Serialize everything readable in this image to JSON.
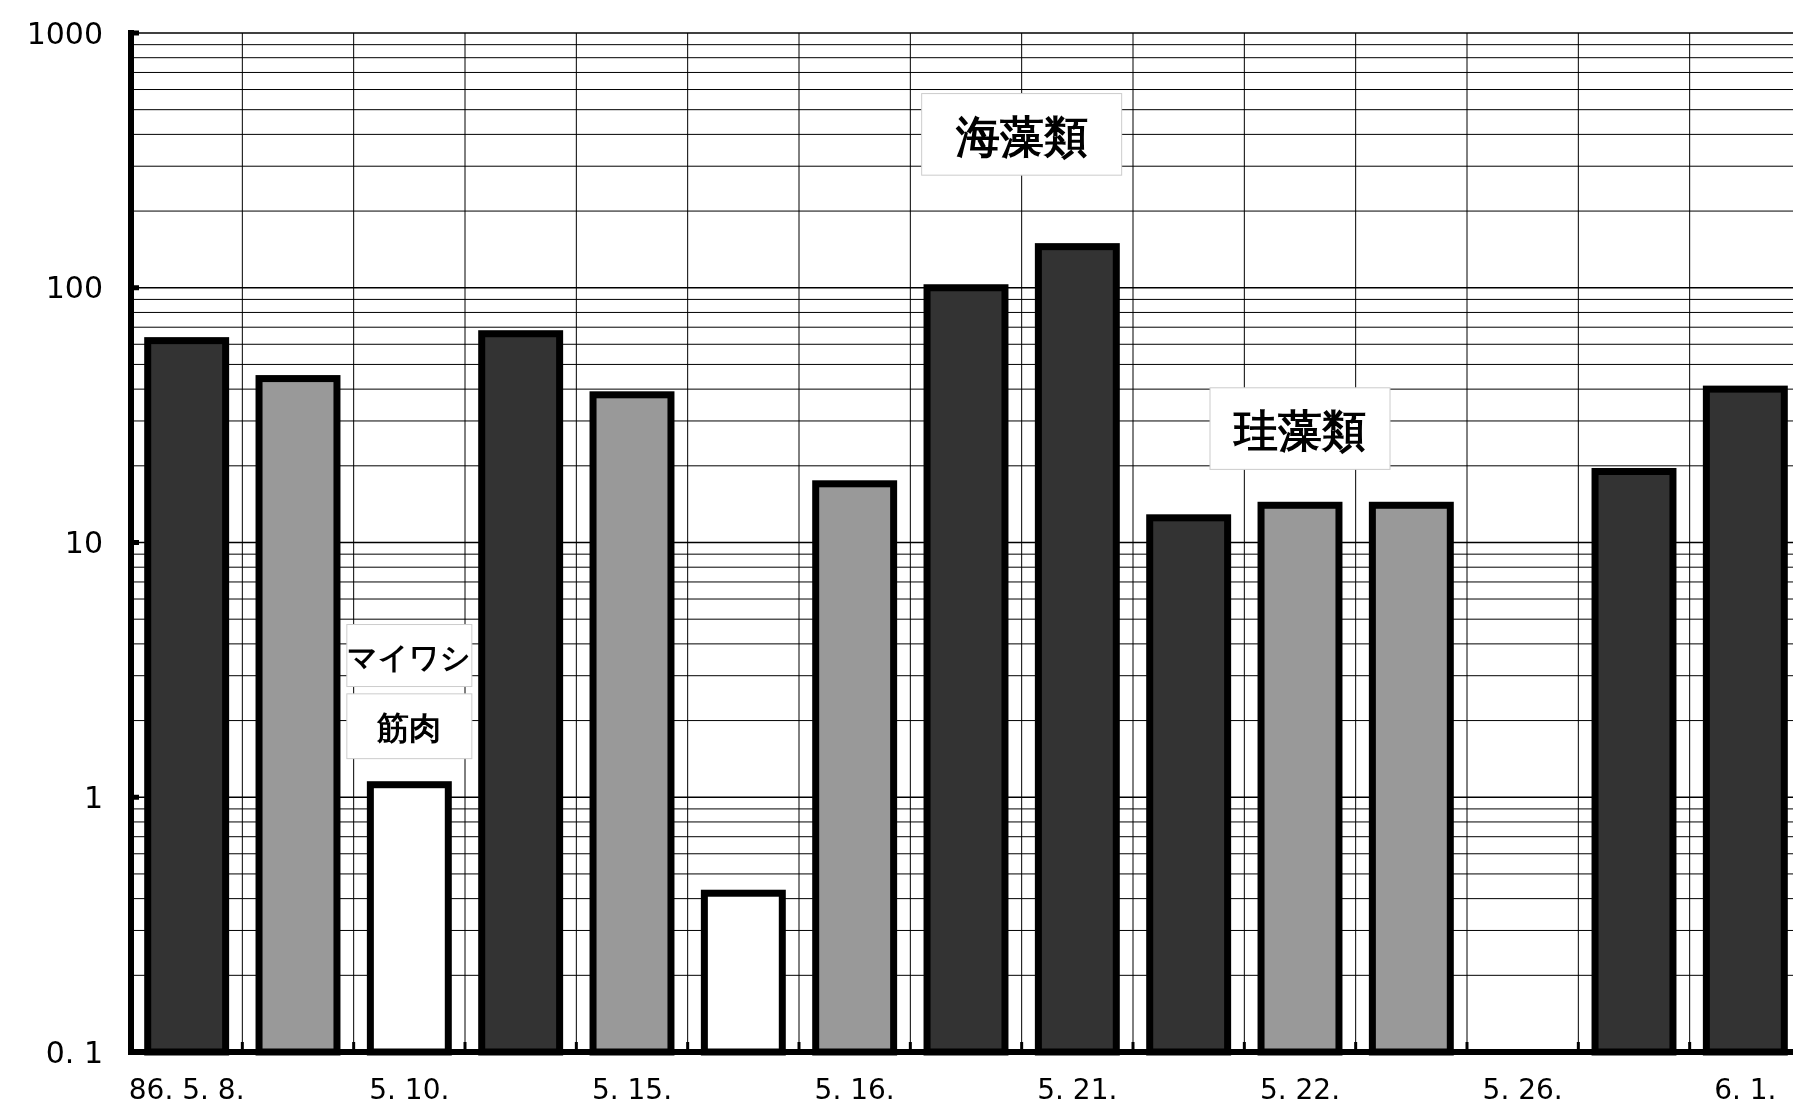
{
  "chart_data": {
    "type": "bar",
    "log": "y",
    "grid": true,
    "categories": [
      "86. 5. 8.",
      null,
      "5. 10.",
      null,
      "5. 15.",
      null,
      "5. 16.",
      null,
      "5. 21.",
      null,
      "5. 22.",
      null,
      "5. 26.",
      null,
      "6. 1."
    ],
    "values": [
      62,
      44,
      1.12,
      66,
      38,
      0.42,
      17,
      100,
      145,
      12.5,
      14,
      14,
      null,
      19,
      40
    ],
    "colors": [
      "#333333",
      "#999999",
      "#ffffff",
      "#333333",
      "#999999",
      "#ffffff",
      "#999999",
      "#333333",
      "#333333",
      "#333333",
      "#999999",
      "#999999",
      null,
      "#333333",
      "#333333"
    ],
    "ylim": [
      0.1,
      1000
    ],
    "yticks": [
      {
        "value": 0.1,
        "label": "0. 1"
      },
      1,
      10,
      100,
      1000
    ],
    "annotations": [
      "海藻類",
      "珪藻類",
      "マイワシ",
      "筋肉"
    ]
  }
}
